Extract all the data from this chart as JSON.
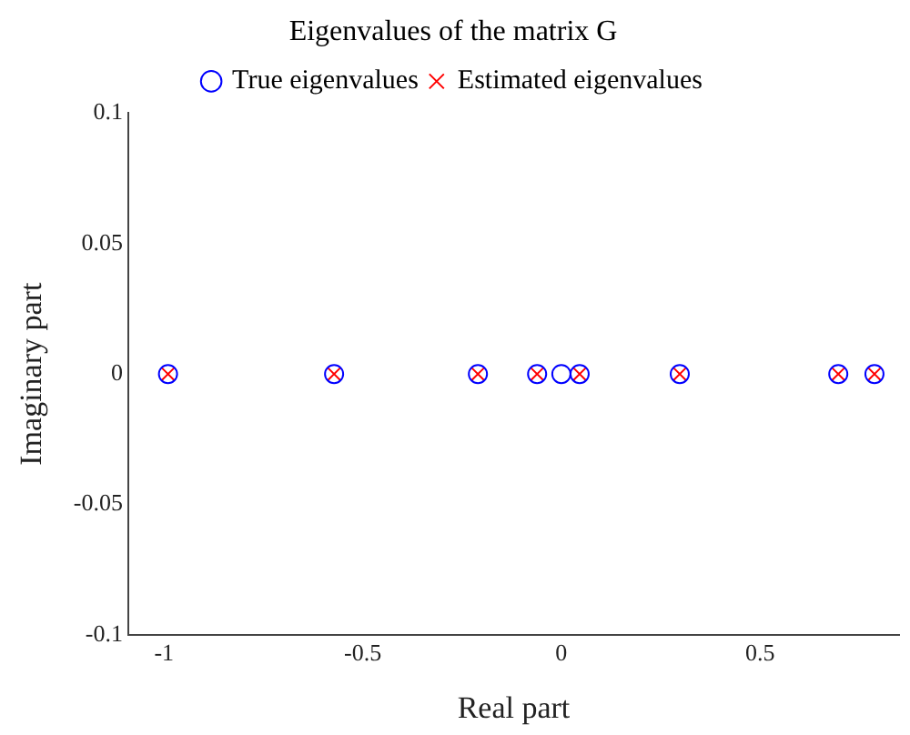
{
  "chart_data": {
    "type": "scatter",
    "title": "Eigenvalues of the matrix G",
    "xlabel": "Real part",
    "ylabel": "Imaginary part",
    "xlim": [
      -1.09,
      0.85
    ],
    "xticks": [
      -1,
      -0.5,
      0,
      0.5
    ],
    "ylim": [
      -0.1,
      0.1
    ],
    "yticks": [
      -0.1,
      -0.05,
      0,
      0.05,
      0.1
    ],
    "grid": false,
    "legend": "top",
    "series": [
      {
        "name": "True eigenvalues",
        "color": "#0000ff",
        "marker": "circle",
        "x": [
          -0.99,
          -0.572,
          -0.21,
          -0.061,
          0.0,
          0.046,
          0.298,
          0.697,
          0.788
        ],
        "values": [
          0,
          0,
          0,
          0,
          0,
          0,
          0,
          0,
          0
        ]
      },
      {
        "name": "Estimated eigenvalues",
        "color": "#ff0000",
        "marker": "cross",
        "x": [
          -0.99,
          -0.572,
          -0.21,
          -0.061,
          0.046,
          0.298,
          0.697,
          0.788
        ],
        "values": [
          0,
          0,
          0,
          0,
          0,
          0,
          0,
          0
        ]
      }
    ]
  }
}
